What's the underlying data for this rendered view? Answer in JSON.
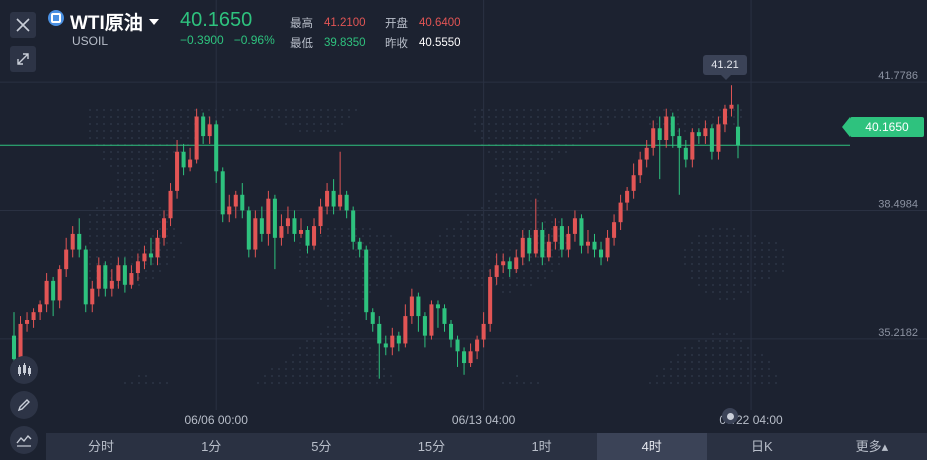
{
  "header": {
    "symbol_name": "WTI原油",
    "symbol_code": "USOIL",
    "last_price": "40.1650",
    "change": "−0.3900",
    "change_pct": "−0.96%",
    "stats": {
      "high_label": "最高",
      "high_value": "41.2100",
      "open_label": "开盘",
      "open_value": "40.6400",
      "low_label": "最低",
      "low_value": "39.8350",
      "prev_close_label": "昨收",
      "prev_close_value": "40.5550"
    }
  },
  "colors": {
    "up": "#e25555",
    "down": "#2ec27e",
    "accent": "#2ec27e"
  },
  "icons": [
    "close-icon",
    "expand-icon",
    "candles-icon",
    "pencil-icon",
    "indicator-icon",
    "caret-down-icon"
  ],
  "tabs": [
    {
      "label": "分时"
    },
    {
      "label": "1分"
    },
    {
      "label": "5分"
    },
    {
      "label": "15分"
    },
    {
      "label": "1时"
    },
    {
      "label": "4时"
    },
    {
      "label": "日K"
    },
    {
      "label": "更多▴"
    }
  ],
  "active_tab": "4时",
  "price_tag": "40.1650",
  "high_marker": "41.21",
  "chart_data": {
    "type": "candlestick",
    "ylim": [
      33.4,
      42.6
    ],
    "y_ticks": [
      {
        "label": "41.7786",
        "value": 41.7786
      },
      {
        "label": "38.4984",
        "value": 38.4984
      },
      {
        "label": "35.2182",
        "value": 35.2182
      }
    ],
    "x_ticks": [
      {
        "label": "06/06 00:00",
        "index": 31
      },
      {
        "label": "06/13 04:00",
        "index": 72
      },
      {
        "label": "06/22 04:00",
        "index": 113
      }
    ],
    "current_price": 40.165,
    "candles": [
      [
        35.3,
        34.7,
        35.9,
        34.5
      ],
      [
        34.7,
        35.6,
        35.8,
        34.5
      ],
      [
        35.6,
        35.7,
        35.9,
        35.4
      ],
      [
        35.7,
        35.9,
        36.0,
        35.5
      ],
      [
        35.9,
        36.1,
        36.2,
        35.7
      ],
      [
        36.1,
        36.7,
        36.9,
        35.9
      ],
      [
        36.7,
        36.2,
        36.8,
        35.8
      ],
      [
        36.2,
        37.0,
        37.1,
        36.0
      ],
      [
        37.0,
        37.5,
        37.8,
        36.8
      ],
      [
        37.5,
        37.9,
        38.1,
        37.3
      ],
      [
        37.9,
        37.5,
        38.3,
        37.3
      ],
      [
        37.5,
        36.1,
        37.6,
        35.9
      ],
      [
        36.1,
        36.5,
        36.7,
        35.9
      ],
      [
        36.5,
        37.1,
        37.3,
        36.3
      ],
      [
        37.1,
        36.5,
        37.2,
        36.3
      ],
      [
        36.5,
        36.7,
        37.0,
        36.3
      ],
      [
        36.7,
        37.1,
        37.3,
        36.5
      ],
      [
        37.1,
        36.6,
        37.3,
        36.4
      ],
      [
        36.6,
        36.9,
        37.1,
        36.5
      ],
      [
        36.9,
        37.2,
        37.4,
        36.7
      ],
      [
        37.2,
        37.4,
        37.6,
        37.0
      ],
      [
        37.4,
        37.3,
        37.8,
        37.1
      ],
      [
        37.3,
        37.8,
        38.0,
        37.1
      ],
      [
        37.8,
        38.3,
        38.5,
        37.6
      ],
      [
        38.3,
        39.0,
        39.2,
        38.1
      ],
      [
        39.0,
        40.0,
        40.3,
        38.8
      ],
      [
        40.0,
        39.6,
        40.2,
        39.4
      ],
      [
        39.6,
        39.8,
        40.1,
        39.5
      ],
      [
        39.8,
        40.9,
        41.1,
        39.7
      ],
      [
        40.9,
        40.4,
        41.0,
        40.2
      ],
      [
        40.4,
        40.7,
        40.9,
        40.2
      ],
      [
        40.7,
        39.5,
        40.8,
        39.2
      ],
      [
        39.5,
        38.4,
        39.6,
        38.2
      ],
      [
        38.4,
        38.6,
        38.9,
        38.2
      ],
      [
        38.6,
        38.9,
        39.0,
        38.3
      ],
      [
        38.9,
        38.5,
        39.2,
        38.3
      ],
      [
        38.5,
        37.5,
        38.6,
        37.3
      ],
      [
        37.5,
        38.3,
        38.5,
        37.3
      ],
      [
        38.3,
        37.9,
        38.6,
        37.7
      ],
      [
        37.9,
        38.8,
        39.0,
        37.6
      ],
      [
        38.8,
        37.8,
        38.9,
        37.0
      ],
      [
        37.8,
        38.1,
        38.4,
        37.6
      ],
      [
        38.1,
        38.3,
        38.6,
        37.9
      ],
      [
        38.3,
        37.9,
        38.5,
        37.7
      ],
      [
        37.9,
        38.0,
        38.3,
        37.8
      ],
      [
        38.0,
        37.6,
        38.1,
        37.4
      ],
      [
        37.6,
        38.1,
        38.3,
        37.5
      ],
      [
        38.1,
        38.6,
        38.8,
        37.9
      ],
      [
        38.6,
        39.0,
        39.2,
        38.4
      ],
      [
        39.0,
        38.6,
        39.3,
        38.4
      ],
      [
        38.6,
        38.9,
        40.0,
        38.5
      ],
      [
        38.9,
        38.5,
        39.0,
        38.3
      ],
      [
        38.5,
        37.7,
        38.6,
        37.5
      ],
      [
        37.7,
        37.5,
        37.8,
        37.3
      ],
      [
        37.5,
        35.9,
        37.6,
        35.7
      ],
      [
        35.9,
        35.6,
        36.0,
        35.4
      ],
      [
        35.6,
        35.1,
        35.8,
        34.2
      ],
      [
        35.1,
        35.0,
        35.3,
        34.8
      ],
      [
        35.0,
        35.3,
        35.5,
        34.8
      ],
      [
        35.3,
        35.1,
        35.4,
        34.9
      ],
      [
        35.1,
        35.8,
        36.1,
        35.0
      ],
      [
        35.8,
        36.3,
        36.5,
        35.6
      ],
      [
        36.3,
        35.8,
        36.4,
        35.4
      ],
      [
        35.8,
        35.3,
        35.9,
        35.0
      ],
      [
        35.3,
        36.1,
        36.2,
        35.2
      ],
      [
        36.1,
        36.0,
        36.2,
        35.5
      ],
      [
        36.0,
        35.6,
        36.1,
        35.4
      ],
      [
        35.6,
        35.2,
        35.7,
        35.0
      ],
      [
        35.2,
        34.9,
        35.3,
        34.5
      ],
      [
        34.9,
        34.6,
        35.0,
        34.3
      ],
      [
        34.6,
        34.9,
        35.1,
        34.5
      ],
      [
        34.9,
        35.2,
        35.3,
        34.7
      ],
      [
        35.2,
        35.6,
        35.9,
        35.0
      ],
      [
        35.6,
        36.8,
        37.0,
        35.4
      ],
      [
        36.8,
        37.1,
        37.4,
        36.6
      ],
      [
        37.1,
        37.2,
        37.4,
        36.9
      ],
      [
        37.2,
        37.0,
        37.3,
        36.8
      ],
      [
        37.0,
        37.3,
        37.5,
        36.9
      ],
      [
        37.3,
        37.8,
        38.0,
        37.1
      ],
      [
        37.8,
        37.4,
        38.0,
        37.2
      ],
      [
        37.4,
        38.0,
        38.8,
        37.3
      ],
      [
        38.0,
        37.3,
        38.2,
        37.1
      ],
      [
        37.3,
        37.7,
        37.9,
        37.2
      ],
      [
        37.7,
        38.1,
        38.3,
        37.5
      ],
      [
        38.1,
        37.5,
        38.3,
        37.3
      ],
      [
        37.5,
        37.9,
        38.1,
        37.3
      ],
      [
        37.9,
        38.3,
        38.5,
        37.7
      ],
      [
        38.3,
        37.6,
        38.4,
        37.4
      ],
      [
        37.6,
        37.7,
        38.0,
        37.4
      ],
      [
        37.7,
        37.5,
        37.9,
        37.3
      ],
      [
        37.5,
        37.3,
        37.7,
        37.1
      ],
      [
        37.3,
        37.8,
        38.0,
        37.2
      ],
      [
        37.8,
        38.2,
        38.4,
        37.6
      ],
      [
        38.2,
        38.7,
        38.9,
        38.0
      ],
      [
        38.7,
        39.0,
        39.1,
        38.5
      ],
      [
        39.0,
        39.4,
        39.7,
        38.8
      ],
      [
        39.4,
        39.8,
        40.0,
        39.2
      ],
      [
        39.8,
        40.1,
        40.3,
        39.6
      ],
      [
        40.1,
        40.6,
        40.8,
        39.9
      ],
      [
        40.6,
        40.3,
        40.9,
        39.3
      ],
      [
        40.3,
        40.9,
        41.1,
        40.1
      ],
      [
        40.9,
        40.4,
        41.0,
        40.1
      ],
      [
        40.4,
        40.1,
        40.6,
        38.9
      ],
      [
        40.1,
        39.8,
        40.3,
        39.6
      ],
      [
        39.8,
        40.5,
        40.6,
        39.6
      ],
      [
        40.5,
        40.4,
        40.6,
        40.2
      ],
      [
        40.4,
        40.6,
        40.8,
        40.2
      ],
      [
        40.6,
        40.0,
        40.7,
        39.8
      ],
      [
        40.0,
        40.7,
        40.9,
        39.8
      ],
      [
        40.7,
        41.1,
        41.2,
        40.5
      ],
      [
        41.1,
        41.2,
        41.7,
        40.9
      ],
      [
        40.64,
        40.165,
        41.21,
        39.835
      ]
    ]
  }
}
